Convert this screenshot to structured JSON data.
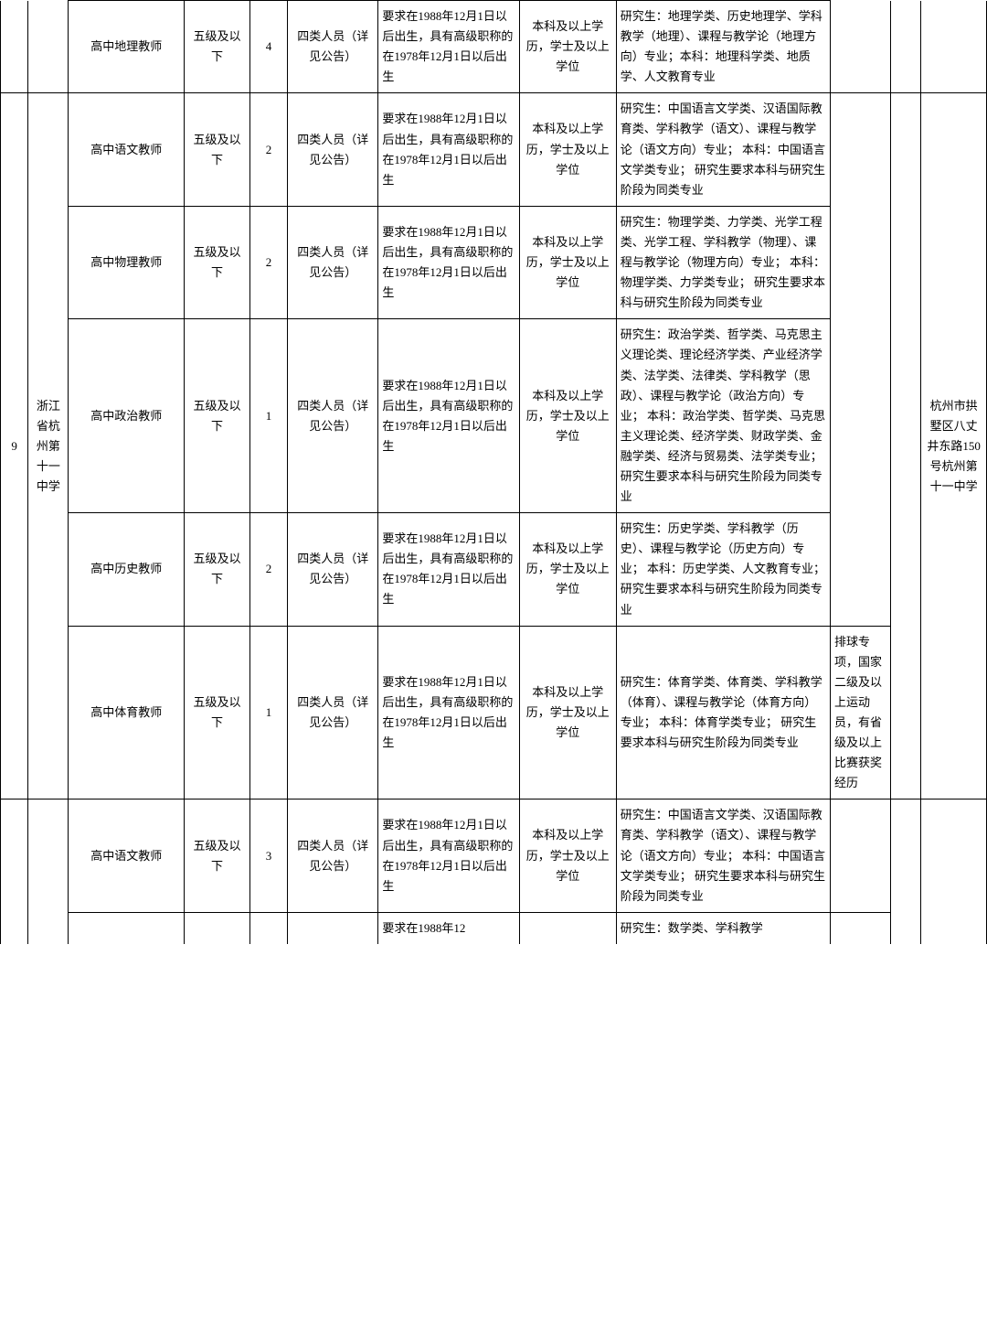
{
  "strings": {
    "grade": "五级及以下",
    "category": "四类人员（详见公告）",
    "age_req": "要求在1988年12月1日以后出生，具有高级职称的在1978年12月1日以后出生",
    "edu_req": "本科及以上学历，学士及以上学位",
    "partial_age": "要求在1988年12",
    "idx9": "9",
    "school9": "浙江省杭州第十一中学",
    "addr9": "杭州市拱墅区八丈井东路150号杭州第十一中学"
  },
  "rows": {
    "r1": {
      "pos": "高中地理教师",
      "qty": "4",
      "major": "研究生：地理学类、历史地理学、学科教学（地理）、课程与教学论（地理方向）专业；本科：地理科学类、地质学、人文教育专业"
    },
    "r2": {
      "pos": "高中语文教师",
      "qty": "2",
      "major": "研究生：中国语言文学类、汉语国际教育类、学科教学（语文）、课程与教学论（语文方向）专业；\n本科：中国语言文学类专业；\n研究生要求本科与研究生阶段为同类专业"
    },
    "r3": {
      "pos": "高中物理教师",
      "qty": "2",
      "major": "研究生：物理学类、力学类、光学工程类、光学工程、学科教学（物理）、课程与教学论（物理方向）专业；\n本科：物理学类、力学类专业；\n研究生要求本科与研究生阶段为同类专业"
    },
    "r4": {
      "pos": "高中政治教师",
      "qty": "1",
      "major": "研究生：政治学类、哲学类、马克思主义理论类、理论经济学类、产业经济学类、法学类、法律类、学科教学（思政）、课程与教学论（政治方向）专业；\n本科：政治学类、哲学类、马克思主义理论类、经济学类、财政学类、金融学类、经济与贸易类、法学类专业；\n研究生要求本科与研究生阶段为同类专业"
    },
    "r5": {
      "pos": "高中历史教师",
      "qty": "2",
      "major": "研究生：历史学类、学科教学（历史）、课程与教学论（历史方向）专业；\n本科：历史学类、人文教育专业；\n研究生要求本科与研究生阶段为同类专业"
    },
    "r6": {
      "pos": "高中体育教师",
      "qty": "1",
      "major": "研究生：体育学类、体育类、学科教学（体育）、课程与教学论（体育方向）专业；\n本科：体育学类专业；\n研究生要求本科与研究生阶段为同类专业",
      "other": "排球专项，国家二级及以上运动员，有省级及以上比赛获奖经历"
    },
    "r7": {
      "pos": "高中语文教师",
      "qty": "3",
      "major": "研究生：中国语言文学类、汉语国际教育类、学科教学（语文）、课程与教学论（语文方向）专业；\n本科：中国语言文学类专业；\n研究生要求本科与研究生阶段为同类专业"
    },
    "r8": {
      "major_partial": "研究生：数学类、学科教学"
    }
  }
}
